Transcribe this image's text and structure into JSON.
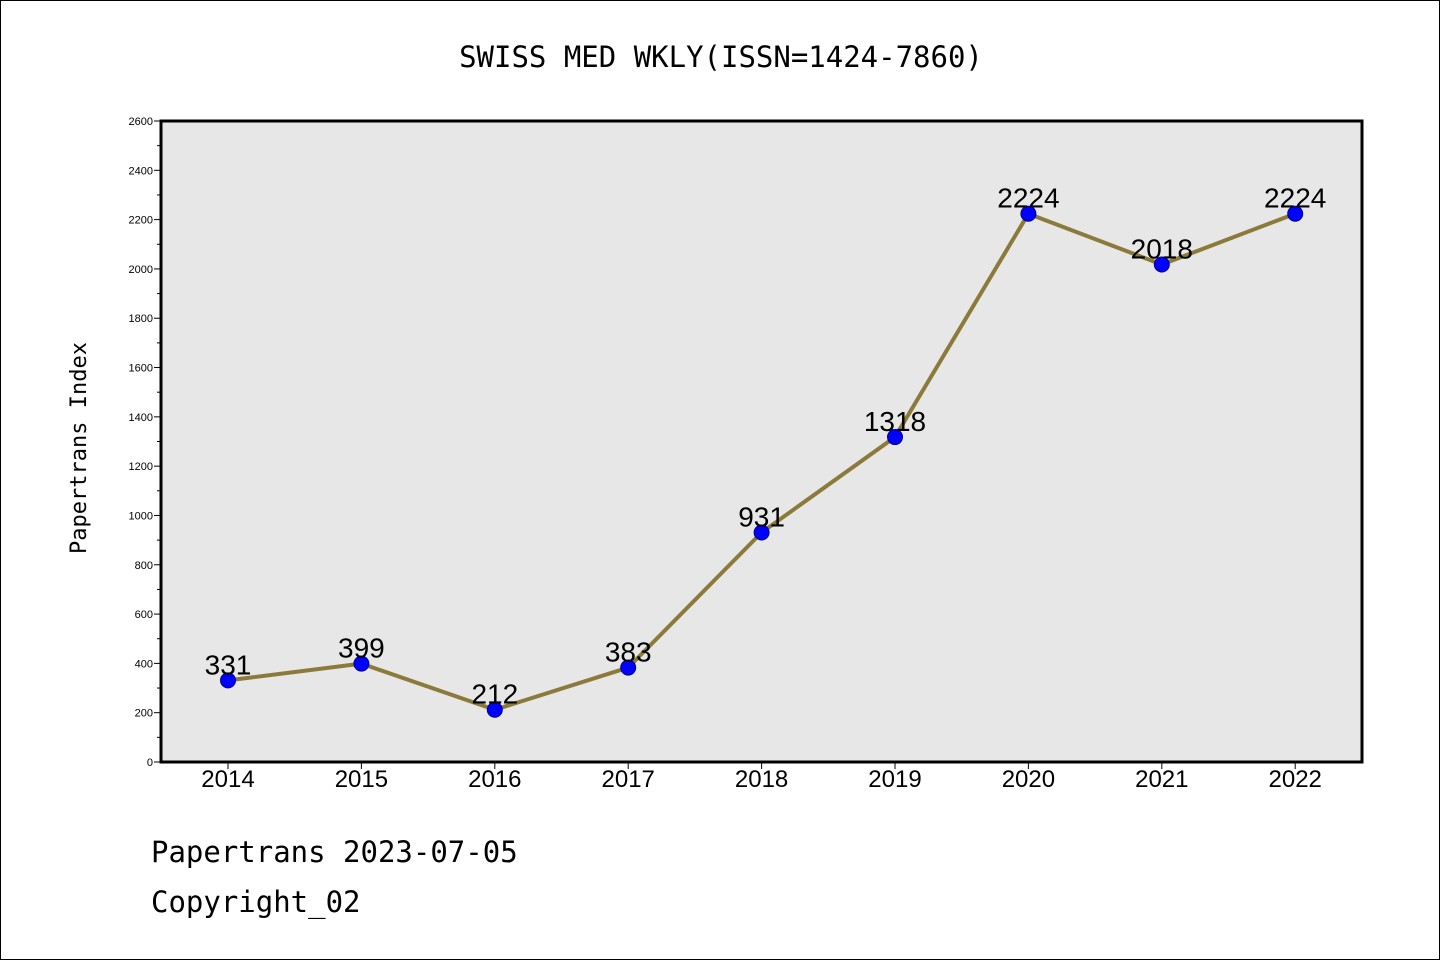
{
  "chart_data": {
    "type": "line",
    "title": "SWISS MED WKLY(ISSN=1424-7860)",
    "xlabel": "",
    "ylabel": "Papertrans Index",
    "categories": [
      "2014",
      "2015",
      "2016",
      "2017",
      "2018",
      "2019",
      "2020",
      "2021",
      "2022"
    ],
    "values": [
      331,
      399,
      212,
      383,
      931,
      1318,
      2224,
      2018,
      2224
    ],
    "data_labels": [
      "331",
      "399",
      "212",
      "383",
      "931",
      "1318",
      "2224",
      "2018",
      "2224"
    ],
    "ylim": [
      0,
      2600
    ],
    "yticks": [
      "0",
      "200",
      "400",
      "600",
      "800",
      "1000",
      "1200",
      "1400",
      "1600",
      "1800",
      "2000",
      "2200",
      "2400",
      "2600"
    ],
    "grid": false,
    "colors": {
      "line": "#8b7a3a",
      "marker": "#0000ff",
      "plot_bg": "#e7e7e7"
    }
  },
  "footer": {
    "line1": "Papertrans 2023-07-05",
    "line2": "Copyright_02"
  }
}
